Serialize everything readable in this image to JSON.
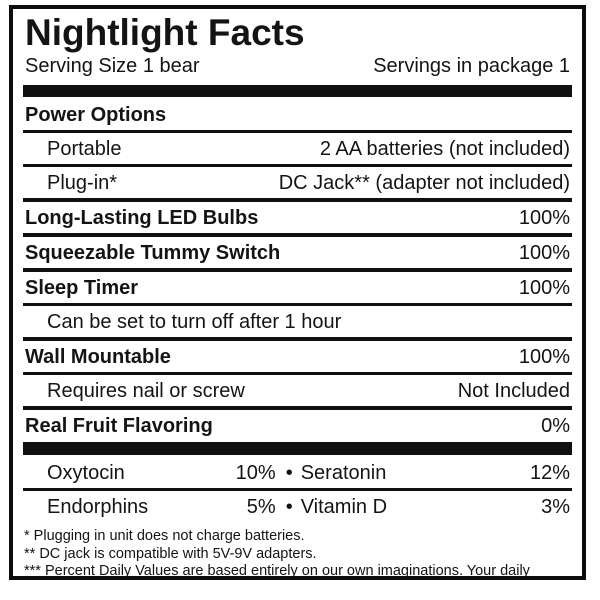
{
  "colors": {
    "text": "#141414",
    "bar": "#101010",
    "background": "#ffffff"
  },
  "header": {
    "title": "Nightlight Facts",
    "serving_size": "Serving Size 1 bear",
    "servings_in_package": "Servings in package 1"
  },
  "rows": [
    {
      "label": "Power Options",
      "value": "",
      "style": "bold-section"
    },
    {
      "label": "Portable",
      "value": "2 AA batteries (not included)",
      "style": "indented"
    },
    {
      "label": "Plug-in*",
      "value": "DC Jack** (adapter not included)",
      "style": "indented"
    },
    {
      "label": "Long-Lasting LED Bulbs",
      "value": "100%",
      "style": "bold-section"
    },
    {
      "label": "Squeezable Tummy Switch",
      "value": "100%",
      "style": "bold-section"
    },
    {
      "label": "Sleep Timer",
      "value": "100%",
      "style": "bold-section"
    },
    {
      "label": "Can be set to turn off after 1 hour",
      "value": "",
      "style": "indented"
    },
    {
      "label": "Wall Mountable",
      "value": "100%",
      "style": "bold-section"
    },
    {
      "label": "Requires nail or screw",
      "value": "Not Included",
      "style": "indented"
    },
    {
      "label": "Real Fruit Flavoring",
      "value": "0%",
      "style": "bold-section"
    }
  ],
  "nutrients": {
    "bullet": "•",
    "rows": [
      {
        "left": {
          "name": "Oxytocin",
          "value": "10%"
        },
        "right": {
          "name": "Seratonin",
          "value": "12%"
        }
      },
      {
        "left": {
          "name": "Endorphins",
          "value": "5%"
        },
        "right": {
          "name": "Vitamin D",
          "value": "3%"
        }
      }
    ]
  },
  "footnotes": [
    "* Plugging in unit does not charge batteries.",
    "** DC jack is compatible with 5V-9V adapters.",
    "*** Percent Daily Values are based entirely on our own imaginations. Your daily values may be different depending on your current mood, state of mind and sense of humor."
  ]
}
